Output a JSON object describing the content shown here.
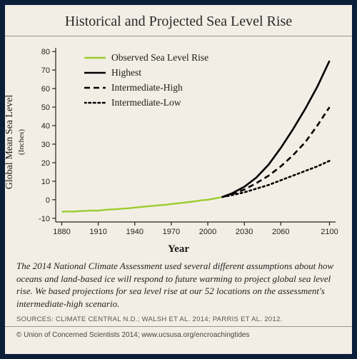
{
  "title": "Historical and Projected Sea Level Rise",
  "chart": {
    "type": "line",
    "background_color": "#f3eee5",
    "border_color": "#0b1f3a",
    "axis_color": "#222222",
    "tick_font_family": "Arial",
    "tick_fontsize": 11,
    "title_fontsize": 20,
    "x_axis": {
      "title": "Year",
      "title_fontsize": 15,
      "title_fontweight": "bold",
      "min": 1875,
      "max": 2105,
      "ticks": [
        1880,
        1910,
        1940,
        1970,
        2000,
        2030,
        2060,
        2100
      ]
    },
    "y_axis": {
      "title": "Global Mean Sea Level",
      "subtitle": "(Inches)",
      "title_fontsize": 14,
      "subtitle_fontsize": 11,
      "min": -12,
      "max": 82,
      "ticks": [
        -10,
        0,
        10,
        20,
        30,
        40,
        50,
        60,
        70,
        80
      ]
    },
    "legend": {
      "position": "upper-left-inside",
      "fontsize": 13.5,
      "items": [
        {
          "label": "Observed Sea Level Rise",
          "series": "observed"
        },
        {
          "label": "Highest",
          "series": "highest"
        },
        {
          "label": "Intermediate-High",
          "series": "inter_high"
        },
        {
          "label": "Intermediate-Low",
          "series": "inter_low"
        }
      ]
    },
    "series": {
      "observed": {
        "color": "#9acd32",
        "width": 2.4,
        "dash": "none",
        "data": [
          [
            1880,
            -6.5
          ],
          [
            1885,
            -6.3
          ],
          [
            1890,
            -6.4
          ],
          [
            1895,
            -6.1
          ],
          [
            1900,
            -6.0
          ],
          [
            1905,
            -5.8
          ],
          [
            1910,
            -5.9
          ],
          [
            1915,
            -5.5
          ],
          [
            1920,
            -5.3
          ],
          [
            1925,
            -5.1
          ],
          [
            1930,
            -4.8
          ],
          [
            1935,
            -4.6
          ],
          [
            1940,
            -4.2
          ],
          [
            1945,
            -3.9
          ],
          [
            1950,
            -3.6
          ],
          [
            1955,
            -3.3
          ],
          [
            1960,
            -3.0
          ],
          [
            1965,
            -2.7
          ],
          [
            1970,
            -2.3
          ],
          [
            1975,
            -2.0
          ],
          [
            1980,
            -1.6
          ],
          [
            1985,
            -1.2
          ],
          [
            1990,
            -0.8
          ],
          [
            1995,
            -0.3
          ],
          [
            2000,
            0.0
          ],
          [
            2005,
            0.6
          ],
          [
            2010,
            1.2
          ],
          [
            2012,
            1.5
          ]
        ]
      },
      "highest": {
        "color": "#000000",
        "width": 2.6,
        "dash": "none",
        "data": [
          [
            2012,
            1.5
          ],
          [
            2020,
            3.5
          ],
          [
            2030,
            7
          ],
          [
            2040,
            12
          ],
          [
            2050,
            19
          ],
          [
            2060,
            28
          ],
          [
            2070,
            38
          ],
          [
            2080,
            49
          ],
          [
            2090,
            61
          ],
          [
            2100,
            75
          ]
        ]
      },
      "inter_high": {
        "color": "#000000",
        "width": 2.6,
        "dash": "8,5",
        "data": [
          [
            2012,
            1.5
          ],
          [
            2020,
            3
          ],
          [
            2030,
            5.5
          ],
          [
            2040,
            9
          ],
          [
            2050,
            13
          ],
          [
            2060,
            18
          ],
          [
            2070,
            24
          ],
          [
            2080,
            31
          ],
          [
            2090,
            40
          ],
          [
            2100,
            50
          ]
        ]
      },
      "inter_low": {
        "color": "#000000",
        "width": 2.6,
        "dash": "2.5,4",
        "data": [
          [
            2012,
            1.5
          ],
          [
            2020,
            2.5
          ],
          [
            2030,
            4
          ],
          [
            2040,
            6
          ],
          [
            2050,
            8
          ],
          [
            2060,
            10.5
          ],
          [
            2070,
            13
          ],
          [
            2080,
            15.5
          ],
          [
            2090,
            18
          ],
          [
            2100,
            21
          ]
        ]
      }
    }
  },
  "caption": "The 2014 National Climate Assessment used several different assumptions about how oceans and land-based ice will respond to future warming to project global sea level rise. We based projections for sea level rise at our 52 locations on the assessment's intermediate-high scenario.",
  "sources": "SOURCES: CLIMATE CENTRAL N.D.; WALSH ET AL. 2014; PARRIS ET AL. 2012.",
  "copyright": "© Union of Concerned Scientists 2014; www.ucsusa.org/encroachingtides"
}
